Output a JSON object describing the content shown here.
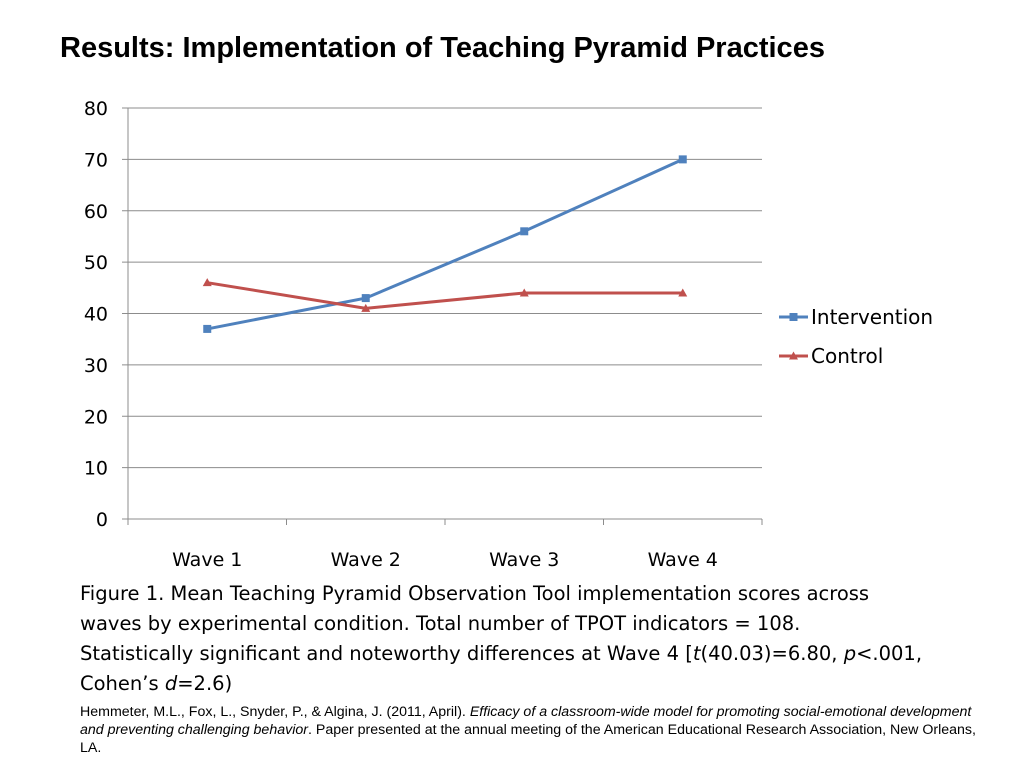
{
  "title": "Results: Implementation of Teaching Pyramid Practices",
  "chart_data": {
    "type": "line",
    "categories": [
      "Wave 1",
      "Wave 2",
      "Wave 3",
      "Wave 4"
    ],
    "yticks": [
      "0",
      "10",
      "20",
      "30",
      "40",
      "50",
      "60",
      "70",
      "80"
    ],
    "ylim": [
      0,
      80
    ],
    "grid": true,
    "legend_position": "right",
    "series": [
      {
        "name": "Intervention",
        "values": [
          37,
          43,
          56,
          70
        ],
        "color": "#4F81BD",
        "marker": "square"
      },
      {
        "name": "Control",
        "values": [
          46,
          41,
          44,
          44
        ],
        "color": "#C0504D",
        "marker": "triangle"
      }
    ],
    "title": "",
    "xlabel": "",
    "ylabel": ""
  },
  "caption": {
    "line1": "Figure 1. Mean Teaching Pyramid Observation Tool implementation scores across",
    "line2": "waves by experimental condition. Total number of TPOT indicators = 108.",
    "line3_a": "Statistically significant and noteworthy differences at Wave 4 [",
    "line3_t": "t",
    "line3_b": "(40.03)=6.80, ",
    "line3_p": "p",
    "line3_c": "<.001,",
    "line4_a": "Cohen’s ",
    "line4_d": "d",
    "line4_b": "=2.6)"
  },
  "reference": {
    "authors": "Hemmeter, M.L., Fox, L., Snyder, P., & Algina, J. (2011, April). ",
    "work": "Efficacy of a classroom-wide model for promoting social-emotional development and preventing challenging behavior",
    "rest": ". Paper presented at the annual meeting of the American Educational Research Association, New Orleans, LA."
  }
}
